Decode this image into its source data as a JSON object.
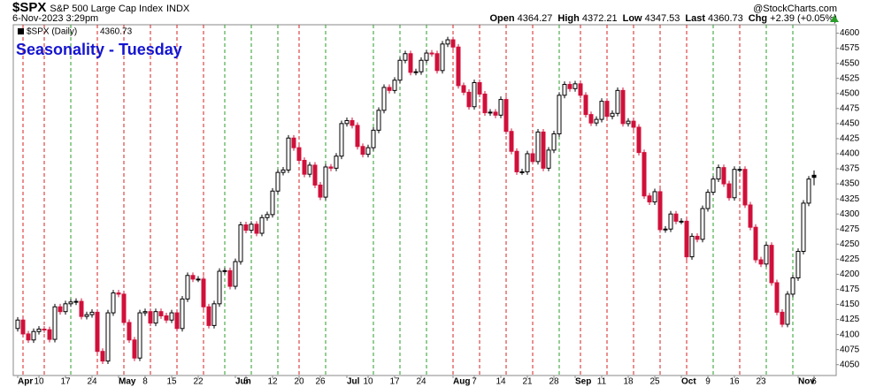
{
  "header": {
    "symbol": "$SPX",
    "name": "S&P 500 Large Cap Index",
    "exchange": "INDX",
    "timestamp": "6-Nov-2023 3:29pm",
    "credit": "@StockCharts.com",
    "open_label": "Open",
    "high_label": "High",
    "low_label": "Low",
    "last_label": "Last",
    "chg_label": "Chg",
    "change": "+2.39 (+0.05%)"
  },
  "chart_data": {
    "type": "candlestick",
    "title": "Seasonality - Tuesday",
    "legend_label": "$SPX (Daily)",
    "categories": [
      "Apr 3",
      "Apr 4",
      "Apr 5",
      "Apr 6",
      "Apr 10",
      "Apr 11",
      "Apr 12",
      "Apr 13",
      "Apr 14",
      "Apr 17",
      "Apr 18",
      "Apr 19",
      "Apr 20",
      "Apr 21",
      "Apr 24",
      "Apr 25",
      "Apr 26",
      "Apr 27",
      "Apr 28",
      "May 1",
      "May 2",
      "May 3",
      "May 4",
      "May 5",
      "May 8",
      "May 9",
      "May 10",
      "May 11",
      "May 12",
      "May 15",
      "May 16",
      "May 17",
      "May 18",
      "May 19",
      "May 22",
      "May 23",
      "May 24",
      "May 25",
      "May 26",
      "May 30",
      "May 31",
      "Jun 1",
      "Jun 2",
      "Jun 5",
      "Jun 6",
      "Jun 7",
      "Jun 8",
      "Jun 9",
      "Jun 12",
      "Jun 13",
      "Jun 14",
      "Jun 15",
      "Jun 16",
      "Jun 20",
      "Jun 21",
      "Jun 22",
      "Jun 23",
      "Jun 26",
      "Jun 27",
      "Jun 28",
      "Jun 29",
      "Jun 30",
      "Jul 3",
      "Jul 5",
      "Jul 6",
      "Jul 7",
      "Jul 10",
      "Jul 11",
      "Jul 12",
      "Jul 13",
      "Jul 14",
      "Jul 17",
      "Jul 18",
      "Jul 19",
      "Jul 20",
      "Jul 21",
      "Jul 24",
      "Jul 25",
      "Jul 26",
      "Jul 27",
      "Jul 28",
      "Jul 31",
      "Aug 1",
      "Aug 2",
      "Aug 3",
      "Aug 4",
      "Aug 7",
      "Aug 8",
      "Aug 9",
      "Aug 10",
      "Aug 11",
      "Aug 14",
      "Aug 15",
      "Aug 16",
      "Aug 17",
      "Aug 18",
      "Aug 21",
      "Aug 22",
      "Aug 23",
      "Aug 24",
      "Aug 25",
      "Aug 28",
      "Aug 29",
      "Aug 30",
      "Aug 31",
      "Sep 1",
      "Sep 5",
      "Sep 6",
      "Sep 7",
      "Sep 8",
      "Sep 11",
      "Sep 12",
      "Sep 13",
      "Sep 14",
      "Sep 15",
      "Sep 18",
      "Sep 19",
      "Sep 20",
      "Sep 21",
      "Sep 22",
      "Sep 25",
      "Sep 26",
      "Sep 27",
      "Sep 28",
      "Sep 29",
      "Oct 2",
      "Oct 3",
      "Oct 4",
      "Oct 5",
      "Oct 6",
      "Oct 9",
      "Oct 10",
      "Oct 11",
      "Oct 12",
      "Oct 13",
      "Oct 16",
      "Oct 17",
      "Oct 18",
      "Oct 19",
      "Oct 20",
      "Oct 23",
      "Oct 24",
      "Oct 25",
      "Oct 26",
      "Oct 27",
      "Oct 30",
      "Oct 31",
      "Nov 1",
      "Nov 2",
      "Nov 3",
      "Nov 6"
    ],
    "open": [
      4110,
      4124,
      4101,
      4091,
      4105,
      4109,
      4108,
      4092,
      4146,
      4138,
      4151,
      4154,
      4155,
      4130,
      4133,
      4137,
      4072,
      4056,
      4136,
      4169,
      4167,
      4120,
      4091,
      4061,
      4136,
      4138,
      4119,
      4138,
      4131,
      4124,
      4136,
      4110,
      4159,
      4198,
      4192,
      4192,
      4146,
      4115,
      4151,
      4205,
      4206,
      4180,
      4221,
      4282,
      4273,
      4283,
      4268,
      4294,
      4299,
      4338,
      4369,
      4373,
      4426,
      4410,
      4389,
      4366,
      4381,
      4348,
      4328,
      4378,
      4376,
      4396,
      4450,
      4455,
      4447,
      4412,
      4399,
      4410,
      4439,
      4472,
      4510,
      4505,
      4522,
      4555,
      4566,
      4535,
      4536,
      4555,
      4567,
      4566,
      4538,
      4582,
      4589,
      4577,
      4513,
      4502,
      4478,
      4518,
      4499,
      4468,
      4469,
      4464,
      4490,
      4437,
      4404,
      4370,
      4370,
      4400,
      4387,
      4436,
      4376,
      4406,
      4433,
      4497,
      4515,
      4508,
      4516,
      4497,
      4465,
      4451,
      4457,
      4487,
      4462,
      4467,
      4505,
      4450,
      4454,
      4444,
      4402,
      4330,
      4320,
      4337,
      4274,
      4275,
      4300,
      4288,
      4288,
      4229,
      4263,
      4258,
      4309,
      4336,
      4358,
      4377,
      4350,
      4327,
      4374,
      4374,
      4315,
      4278,
      4224,
      4217,
      4248,
      4186,
      4137,
      4117,
      4167,
      4194,
      4238,
      4318,
      4364.27
    ],
    "high": [
      4129,
      4129,
      4106,
      4110,
      4114,
      4114,
      4113,
      4151,
      4151,
      4156,
      4159,
      4160,
      4160,
      4138,
      4142,
      4142,
      4077,
      4141,
      4174,
      4174,
      4172,
      4125,
      4096,
      4141,
      4143,
      4143,
      4143,
      4143,
      4136,
      4141,
      4141,
      4164,
      4203,
      4203,
      4197,
      4197,
      4151,
      4156,
      4210,
      4211,
      4211,
      4226,
      4287,
      4287,
      4288,
      4288,
      4299,
      4304,
      4343,
      4374,
      4378,
      4431,
      4431,
      4415,
      4394,
      4386,
      4386,
      4353,
      4383,
      4383,
      4401,
      4455,
      4460,
      4460,
      4452,
      4417,
      4415,
      4444,
      4477,
      4515,
      4515,
      4527,
      4560,
      4571,
      4571,
      4541,
      4560,
      4572,
      4572,
      4571,
      4587,
      4594,
      4594,
      4582,
      4518,
      4507,
      4523,
      4523,
      4504,
      4474,
      4474,
      4495,
      4495,
      4442,
      4409,
      4375,
      4405,
      4405,
      4441,
      4441,
      4411,
      4438,
      4502,
      4520,
      4520,
      4521,
      4521,
      4502,
      4470,
      4462,
      4492,
      4492,
      4472,
      4510,
      4510,
      4459,
      4459,
      4449,
      4407,
      4335,
      4342,
      4342,
      4280,
      4305,
      4305,
      4293,
      4293,
      4268,
      4268,
      4314,
      4341,
      4363,
      4382,
      4382,
      4355,
      4379,
      4379,
      4379,
      4320,
      4283,
      4229,
      4253,
      4253,
      4191,
      4142,
      4172,
      4199,
      4243,
      4323,
      4363,
      4372.21
    ],
    "low": [
      4105,
      4096,
      4086,
      4086,
      4100,
      4103,
      4087,
      4087,
      4133,
      4133,
      4146,
      4149,
      4125,
      4125,
      4128,
      4067,
      4051,
      4051,
      4131,
      4162,
      4115,
      4086,
      4056,
      4056,
      4131,
      4114,
      4114,
      4126,
      4119,
      4119,
      4105,
      4105,
      4154,
      4187,
      4187,
      4141,
      4110,
      4110,
      4146,
      4200,
      4175,
      4175,
      4216,
      4268,
      4268,
      4263,
      4263,
      4289,
      4294,
      4333,
      4364,
      4368,
      4405,
      4384,
      4361,
      4361,
      4343,
      4323,
      4323,
      4371,
      4371,
      4391,
      4445,
      4442,
      4407,
      4394,
      4394,
      4405,
      4434,
      4467,
      4500,
      4500,
      4517,
      4550,
      4530,
      4530,
      4531,
      4550,
      4561,
      4533,
      4533,
      4577,
      4572,
      4508,
      4497,
      4473,
      4473,
      4494,
      4463,
      4463,
      4459,
      4459,
      4432,
      4399,
      4365,
      4365,
      4365,
      4382,
      4382,
      4371,
      4371,
      4401,
      4428,
      4492,
      4503,
      4503,
      4492,
      4460,
      4446,
      4446,
      4452,
      4457,
      4457,
      4462,
      4445,
      4445,
      4439,
      4397,
      4325,
      4315,
      4315,
      4269,
      4269,
      4270,
      4283,
      4283,
      4224,
      4224,
      4253,
      4253,
      4304,
      4331,
      4353,
      4345,
      4322,
      4322,
      4369,
      4310,
      4273,
      4219,
      4212,
      4212,
      4181,
      4132,
      4112,
      4112,
      4162,
      4189,
      4233,
      4313,
      4347.53
    ],
    "close": [
      4124,
      4101,
      4091,
      4105,
      4109,
      4108,
      4092,
      4146,
      4138,
      4151,
      4154,
      4155,
      4130,
      4133,
      4137,
      4072,
      4056,
      4136,
      4169,
      4167,
      4120,
      4091,
      4061,
      4136,
      4138,
      4119,
      4138,
      4131,
      4124,
      4136,
      4110,
      4159,
      4198,
      4192,
      4192,
      4146,
      4115,
      4151,
      4205,
      4206,
      4180,
      4221,
      4282,
      4273,
      4283,
      4268,
      4294,
      4299,
      4338,
      4369,
      4373,
      4426,
      4410,
      4389,
      4366,
      4381,
      4348,
      4328,
      4378,
      4376,
      4396,
      4450,
      4455,
      4447,
      4412,
      4399,
      4410,
      4439,
      4472,
      4510,
      4505,
      4522,
      4555,
      4566,
      4535,
      4536,
      4555,
      4567,
      4566,
      4538,
      4582,
      4589,
      4577,
      4513,
      4502,
      4478,
      4518,
      4499,
      4468,
      4469,
      4464,
      4490,
      4437,
      4404,
      4370,
      4370,
      4400,
      4387,
      4436,
      4376,
      4406,
      4433,
      4497,
      4515,
      4508,
      4516,
      4497,
      4465,
      4451,
      4457,
      4487,
      4462,
      4467,
      4505,
      4450,
      4454,
      4444,
      4402,
      4330,
      4320,
      4337,
      4274,
      4275,
      4300,
      4288,
      4288,
      4229,
      4263,
      4258,
      4309,
      4336,
      4358,
      4377,
      4350,
      4327,
      4374,
      4374,
      4315,
      4278,
      4224,
      4217,
      4248,
      4186,
      4137,
      4117,
      4167,
      4194,
      4238,
      4318,
      4358,
      4360.73
    ],
    "up_color": "#000000",
    "down_color": "#d0103a",
    "marker_up_color": "#2a9d2a",
    "marker_down_color": "#d62020",
    "ylim": [
      4032,
      4614
    ],
    "yticks": [
      4050,
      4075,
      4100,
      4125,
      4150,
      4175,
      4200,
      4225,
      4250,
      4275,
      4300,
      4325,
      4350,
      4375,
      4400,
      4425,
      4450,
      4475,
      4500,
      4525,
      4550,
      4575,
      4600
    ],
    "xticks": [
      {
        "value": "Apr 3",
        "label": "Apr"
      },
      {
        "value": "Apr 10",
        "label": "10"
      },
      {
        "value": "Apr 17",
        "label": "17"
      },
      {
        "value": "Apr 24",
        "label": "24"
      },
      {
        "value": "May 1",
        "label": "May"
      },
      {
        "value": "May 8",
        "label": "8"
      },
      {
        "value": "May 15",
        "label": "15"
      },
      {
        "value": "May 22",
        "label": "22"
      },
      {
        "value": "Jun 1",
        "label": "Jun"
      },
      {
        "value": "Jun 5",
        "label": "5"
      },
      {
        "value": "Jun 12",
        "label": "12"
      },
      {
        "value": "Jun 20",
        "label": "20"
      },
      {
        "value": "Jun 26",
        "label": "26"
      },
      {
        "value": "Jul 3",
        "label": "Jul"
      },
      {
        "value": "Jul 10",
        "label": "10"
      },
      {
        "value": "Jul 17",
        "label": "17"
      },
      {
        "value": "Jul 24",
        "label": "24"
      },
      {
        "value": "Aug 1",
        "label": "Aug"
      },
      {
        "value": "Aug 7",
        "label": "7"
      },
      {
        "value": "Aug 14",
        "label": "14"
      },
      {
        "value": "Aug 21",
        "label": "21"
      },
      {
        "value": "Aug 28",
        "label": "28"
      },
      {
        "value": "Sep 1",
        "label": "Sep"
      },
      {
        "value": "Sep 11",
        "label": "11"
      },
      {
        "value": "Sep 18",
        "label": "18"
      },
      {
        "value": "Sep 25",
        "label": "25"
      },
      {
        "value": "Oct 2",
        "label": "Oct"
      },
      {
        "value": "Oct 9",
        "label": "9"
      },
      {
        "value": "Oct 16",
        "label": "16"
      },
      {
        "value": "Oct 23",
        "label": "23"
      },
      {
        "value": "Nov 1",
        "label": "Nov"
      },
      {
        "value": "Nov 6",
        "label": "6"
      }
    ],
    "tuesday_markers": [
      "Apr 4",
      "Apr 11",
      "Apr 18",
      "Apr 25",
      "May 2",
      "May 9",
      "May 16",
      "May 23",
      "May 30",
      "Jun 6",
      "Jun 13",
      "Jun 20",
      "Jun 27",
      "Jul 11",
      "Jul 18",
      "Jul 25",
      "Aug 1",
      "Aug 8",
      "Aug 15",
      "Aug 22",
      "Aug 29",
      "Sep 5",
      "Sep 12",
      "Sep 19",
      "Sep 26",
      "Oct 3",
      "Oct 10",
      "Oct 17",
      "Oct 24",
      "Oct 31"
    ]
  }
}
